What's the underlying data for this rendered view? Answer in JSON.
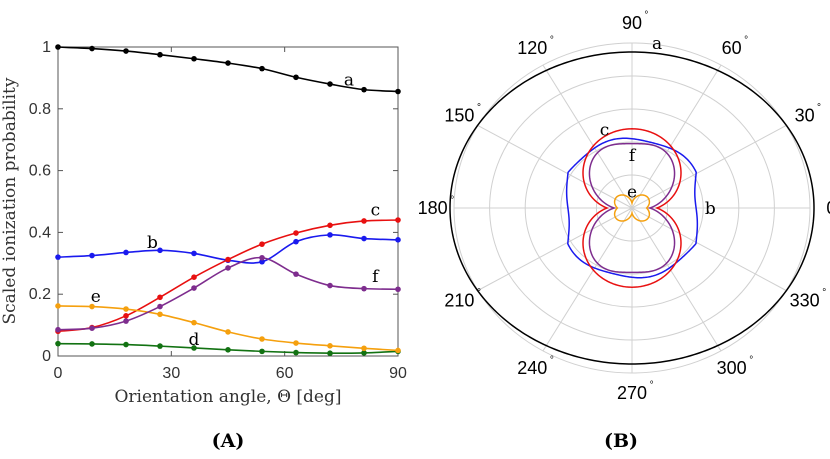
{
  "panels": {
    "a_label": "(A)",
    "b_label": "(B)"
  },
  "chart_data": [
    {
      "type": "line",
      "xlabel": "Orientation angle, Θ [deg]",
      "ylabel": "Scaled ionization probability",
      "xlim": [
        0,
        90
      ],
      "ylim": [
        0,
        1
      ],
      "xticks": [
        0,
        30,
        60,
        90
      ],
      "xtick_labels": [
        "0",
        "30",
        "60",
        "90"
      ],
      "yticks": [
        0,
        0.2,
        0.4,
        0.6,
        0.8,
        1
      ],
      "ytick_labels": [
        "0",
        "0.2",
        "0.4",
        "0.6",
        "0.8",
        "1"
      ],
      "grid": false,
      "x": [
        0,
        9,
        18,
        27,
        36,
        45,
        54,
        63,
        72,
        81,
        90
      ],
      "series": [
        {
          "name": "a",
          "color": "#000000",
          "values": [
            1.0,
            0.995,
            0.987,
            0.975,
            0.962,
            0.948,
            0.93,
            0.902,
            0.88,
            0.862,
            0.856
          ]
        },
        {
          "name": "b",
          "color": "#1a1aee",
          "values": [
            0.32,
            0.325,
            0.335,
            0.342,
            0.332,
            0.31,
            0.305,
            0.37,
            0.392,
            0.38,
            0.376
          ]
        },
        {
          "name": "c",
          "color": "#e81010",
          "values": [
            0.08,
            0.092,
            0.13,
            0.19,
            0.255,
            0.312,
            0.362,
            0.398,
            0.423,
            0.437,
            0.44
          ]
        },
        {
          "name": "d",
          "color": "#127212",
          "values": [
            0.04,
            0.039,
            0.037,
            0.032,
            0.026,
            0.02,
            0.015,
            0.011,
            0.009,
            0.01,
            0.015
          ]
        },
        {
          "name": "e",
          "color": "#f5a00e",
          "values": [
            0.162,
            0.16,
            0.152,
            0.135,
            0.108,
            0.078,
            0.055,
            0.042,
            0.033,
            0.025,
            0.018
          ]
        },
        {
          "name": "f",
          "color": "#7e2d8e",
          "values": [
            0.085,
            0.09,
            0.113,
            0.16,
            0.22,
            0.285,
            0.318,
            0.265,
            0.228,
            0.218,
            0.216
          ]
        }
      ],
      "curve_labels": [
        {
          "text": "a",
          "x": 77,
          "y": 0.875
        },
        {
          "text": "b",
          "x": 25,
          "y": 0.35
        },
        {
          "text": "c",
          "x": 84,
          "y": 0.455
        },
        {
          "text": "d",
          "x": 36,
          "y": 0.035
        },
        {
          "text": "e",
          "x": 10,
          "y": 0.175
        },
        {
          "text": "f",
          "x": 84,
          "y": 0.24
        }
      ]
    },
    {
      "type": "polar",
      "angle_ticks": [
        0,
        30,
        60,
        90,
        120,
        150,
        180,
        210,
        240,
        270,
        300,
        330
      ],
      "angle_tick_labels": [
        "0",
        "30",
        "60",
        "90",
        "120",
        "150",
        "180",
        "210",
        "240",
        "270",
        "300",
        "330"
      ],
      "degree_symbol": "°",
      "rings": [
        0.2,
        0.4,
        0.6,
        0.8,
        1.0
      ],
      "grid": true,
      "series_colors": {
        "a": "#000000",
        "b": "#1a1aee",
        "c": "#e81010",
        "e": "#f5a00e",
        "f": "#7e2d8e"
      },
      "curve_labels": [
        {
          "text": "a",
          "angle": 82,
          "r": 1.01
        },
        {
          "text": "b",
          "angle": 0,
          "r": 0.44
        },
        {
          "text": "c",
          "angle": 108,
          "r": 0.5
        },
        {
          "text": "e",
          "angle": 90,
          "r": 0.1
        },
        {
          "text": "f",
          "angle": 90,
          "r": 0.32
        }
      ]
    }
  ]
}
